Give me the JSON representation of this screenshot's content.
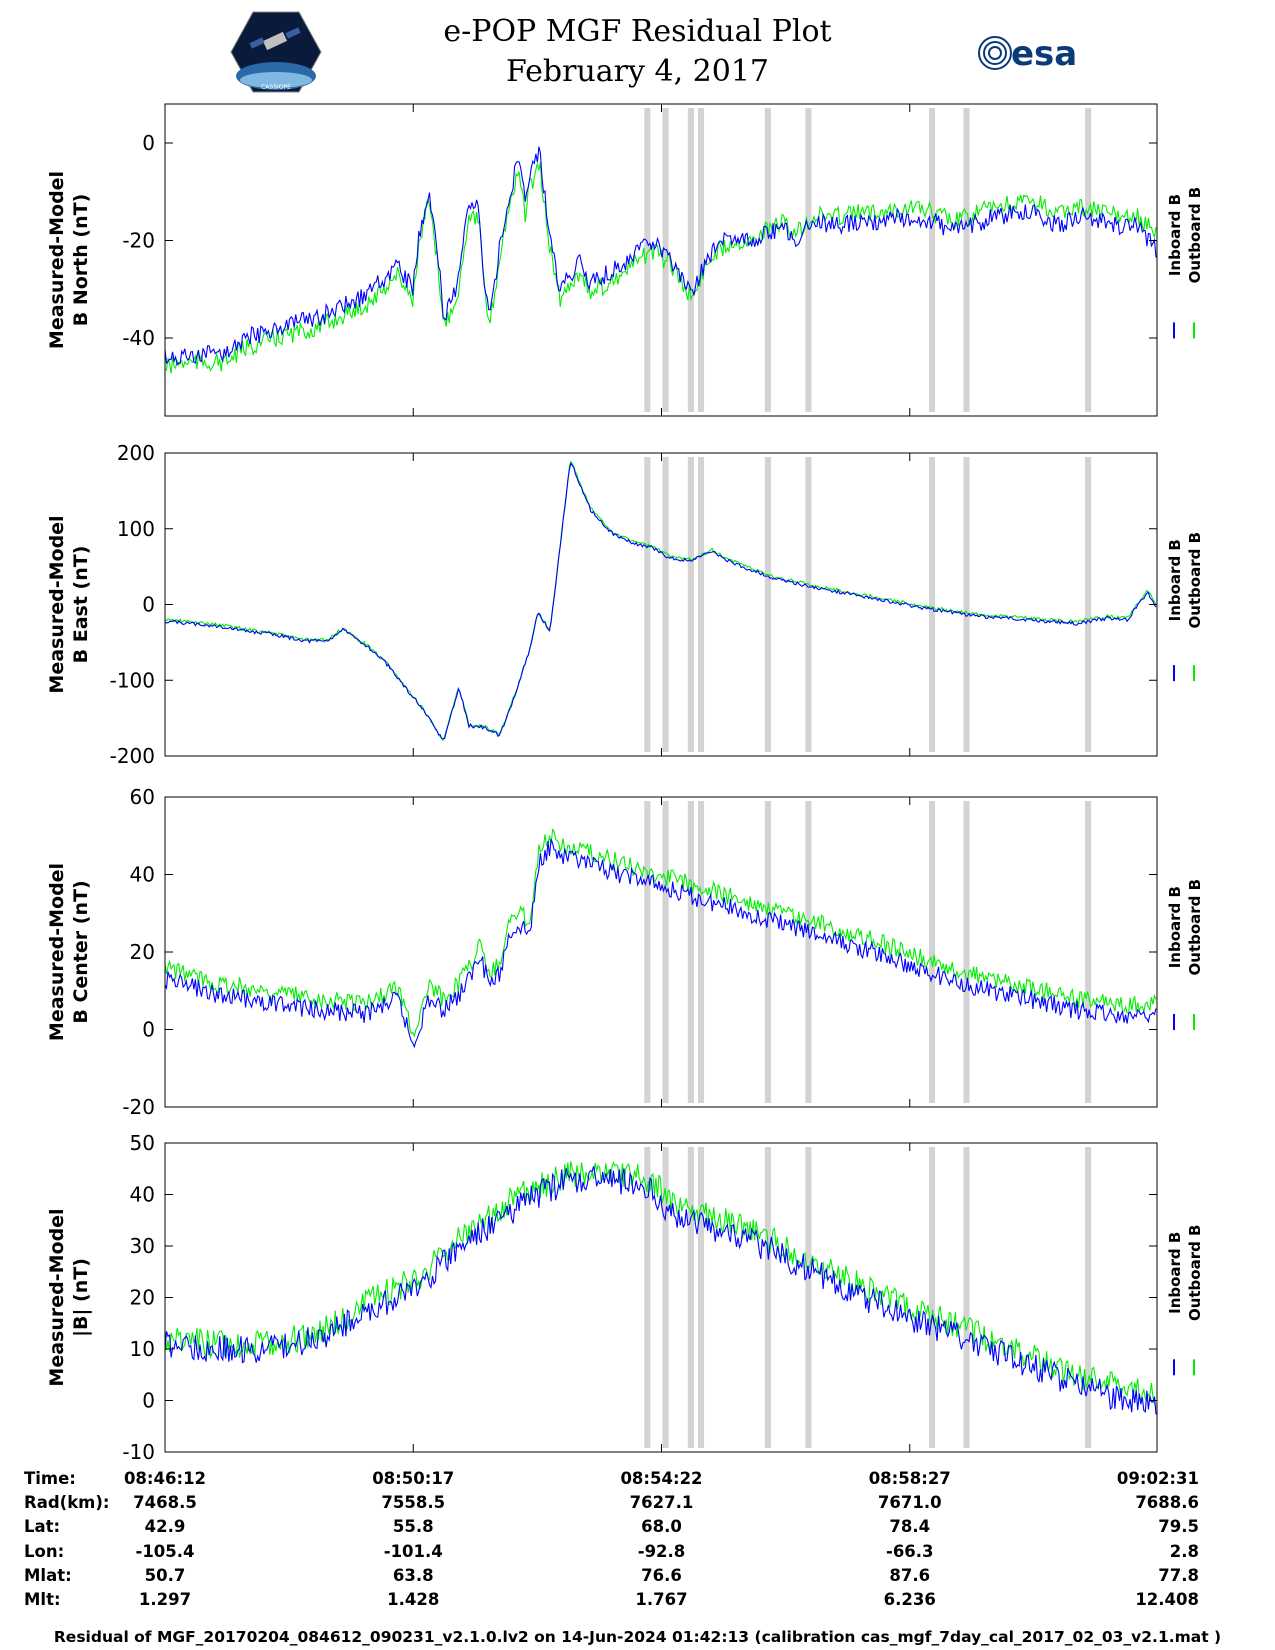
{
  "header": {
    "title_line1": "e-POP MGF Residual Plot",
    "title_line2": "February 4, 2017",
    "left_logo_caption": "CASSIOPE",
    "right_logo_text": "esa"
  },
  "colors": {
    "inboard": "#0000ff",
    "outboard": "#00ee00",
    "gap": "#d3d3d3"
  },
  "legend": {
    "inboard": "Inboard B",
    "outboard": "Outboard B"
  },
  "chart_data": [
    {
      "type": "line",
      "ylabel_line1": "Measured-Model",
      "ylabel_line2": "B North (nT)",
      "ylim": [
        -56,
        8
      ],
      "yticks": [
        0,
        -20,
        -40
      ],
      "xlim_seconds": [
        0,
        979
      ],
      "series": [
        {
          "name": "Inboard B",
          "x": [
            0,
            20,
            60,
            80,
            110,
            150,
            180,
            200,
            210,
            230,
            245,
            250,
            260,
            270,
            275,
            290,
            300,
            310,
            315,
            320,
            330,
            340,
            350,
            355,
            360,
            370,
            380,
            390,
            400,
            410,
            420,
            450,
            480,
            500,
            520,
            530,
            540,
            560,
            580,
            600,
            610,
            620,
            640,
            660,
            700,
            740,
            780,
            820,
            860,
            880,
            900,
            920,
            940,
            960,
            979
          ],
          "y": [
            -44,
            -44,
            -43,
            -40,
            -38,
            -36,
            -33,
            -31,
            -29,
            -25,
            -30,
            -20,
            -10,
            -24,
            -36,
            -28,
            -12,
            -14,
            -28,
            -36,
            -22,
            -10,
            -3,
            -12,
            -6,
            -2,
            -20,
            -30,
            -27,
            -24,
            -29,
            -25,
            -20,
            -24,
            -31,
            -26,
            -22,
            -19,
            -20,
            -18,
            -17,
            -20,
            -16,
            -17,
            -16,
            -15,
            -18,
            -15,
            -14,
            -17,
            -15,
            -16,
            -17,
            -17,
            -22
          ]
        },
        {
          "name": "Outboard B",
          "x": [
            0,
            20,
            60,
            80,
            110,
            150,
            180,
            200,
            210,
            230,
            245,
            250,
            260,
            270,
            275,
            290,
            300,
            310,
            315,
            320,
            330,
            340,
            350,
            355,
            360,
            370,
            380,
            390,
            400,
            410,
            420,
            450,
            480,
            500,
            520,
            530,
            540,
            560,
            580,
            600,
            610,
            620,
            640,
            660,
            700,
            740,
            780,
            820,
            860,
            880,
            900,
            920,
            940,
            960,
            979
          ],
          "y": [
            -46,
            -45,
            -45,
            -42,
            -40,
            -38,
            -35,
            -33,
            -31,
            -27,
            -32,
            -22,
            -12,
            -26,
            -38,
            -30,
            -14,
            -16,
            -30,
            -38,
            -24,
            -12,
            -6,
            -15,
            -9,
            -5,
            -22,
            -32,
            -29,
            -26,
            -31,
            -27,
            -22,
            -25,
            -32,
            -27,
            -23,
            -20,
            -20,
            -17,
            -16,
            -19,
            -15,
            -15,
            -14,
            -13,
            -16,
            -13,
            -12,
            -15,
            -13,
            -14,
            -15,
            -15,
            -19
          ]
        }
      ]
    },
    {
      "type": "line",
      "ylabel_line1": "Measured-Model",
      "ylabel_line2": "B East (nT)",
      "ylim": [
        -200,
        200
      ],
      "yticks": [
        200,
        100,
        0,
        -100,
        -200
      ],
      "xlim_seconds": [
        0,
        979
      ],
      "series": [
        {
          "name": "Inboard B",
          "x": [
            0,
            40,
            60,
            80,
            100,
            120,
            140,
            160,
            175,
            180,
            200,
            220,
            240,
            250,
            260,
            275,
            290,
            300,
            315,
            330,
            340,
            350,
            360,
            368,
            380,
            400,
            420,
            440,
            460,
            480,
            500,
            520,
            540,
            560,
            580,
            600,
            650,
            700,
            750,
            800,
            850,
            900,
            930,
            950,
            960,
            970,
            979
          ],
          "y": [
            -22,
            -27,
            -30,
            -35,
            -38,
            -43,
            -48,
            -48,
            -33,
            -38,
            -55,
            -80,
            -115,
            -130,
            -150,
            -180,
            -110,
            -160,
            -162,
            -173,
            -140,
            -100,
            -60,
            -10,
            -35,
            190,
            125,
            95,
            82,
            75,
            60,
            58,
            70,
            55,
            45,
            35,
            20,
            8,
            -5,
            -15,
            -20,
            -25,
            -18,
            -20,
            0,
            15,
            -5
          ]
        },
        {
          "name": "Outboard B",
          "x": [
            0,
            40,
            60,
            80,
            100,
            120,
            140,
            160,
            175,
            180,
            200,
            220,
            240,
            250,
            260,
            275,
            290,
            300,
            315,
            330,
            340,
            350,
            360,
            368,
            380,
            400,
            420,
            440,
            460,
            480,
            500,
            520,
            540,
            560,
            580,
            600,
            650,
            700,
            750,
            800,
            850,
            900,
            930,
            950,
            960,
            970,
            979
          ],
          "y": [
            -20,
            -25,
            -28,
            -33,
            -36,
            -42,
            -47,
            -47,
            -32,
            -37,
            -54,
            -79,
            -114,
            -129,
            -149,
            -179,
            -109,
            -159,
            -161,
            -172,
            -139,
            -99,
            -59,
            -9,
            -34,
            191,
            127,
            97,
            84,
            77,
            62,
            60,
            72,
            57,
            47,
            37,
            22,
            10,
            -3,
            -13,
            -18,
            -23,
            -16,
            -18,
            2,
            18,
            -2
          ]
        }
      ]
    },
    {
      "type": "line",
      "ylabel_line1": "Measured-Model",
      "ylabel_line2": "B Center (nT)",
      "ylim": [
        -20,
        60
      ],
      "yticks": [
        60,
        40,
        20,
        0,
        -20
      ],
      "xlim_seconds": [
        0,
        979
      ],
      "series": [
        {
          "name": "Inboard B",
          "x": [
            0,
            50,
            100,
            150,
            200,
            230,
            245,
            260,
            275,
            290,
            300,
            310,
            320,
            330,
            340,
            350,
            360,
            370,
            380,
            390,
            400,
            450,
            500,
            550,
            600,
            650,
            700,
            750,
            800,
            850,
            900,
            950,
            979
          ],
          "y": [
            13,
            9,
            7,
            5,
            4,
            8,
            -4,
            8,
            5,
            9,
            13,
            19,
            12,
            14,
            25,
            27,
            25,
            44,
            47,
            45,
            44,
            40,
            36,
            32,
            28,
            24,
            20,
            15,
            11,
            8,
            5,
            3,
            4
          ]
        },
        {
          "name": "Outboard B",
          "x": [
            0,
            50,
            100,
            150,
            200,
            230,
            245,
            260,
            275,
            290,
            300,
            310,
            320,
            330,
            340,
            350,
            360,
            370,
            380,
            390,
            400,
            450,
            500,
            550,
            600,
            650,
            700,
            750,
            800,
            850,
            900,
            950,
            979
          ],
          "y": [
            16,
            12,
            10,
            8,
            7,
            11,
            -1,
            11,
            8,
            12,
            16,
            22,
            15,
            17,
            28,
            30,
            28,
            48,
            50,
            48,
            47,
            43,
            39,
            35,
            31,
            27,
            23,
            18,
            14,
            11,
            8,
            6,
            7
          ]
        }
      ]
    },
    {
      "type": "line",
      "ylabel_line1": "Measured-Model",
      "ylabel_line2": "|B| (nT)",
      "ylim": [
        -10,
        50
      ],
      "yticks": [
        50,
        40,
        30,
        20,
        10,
        0,
        -10
      ],
      "xlim_seconds": [
        0,
        979
      ],
      "series": [
        {
          "name": "Inboard B",
          "x": [
            0,
            50,
            100,
            130,
            160,
            200,
            250,
            300,
            350,
            400,
            440,
            480,
            500,
            550,
            600,
            650,
            700,
            750,
            800,
            850,
            900,
            950,
            979
          ],
          "y": [
            11,
            10,
            10,
            11,
            13,
            17,
            22,
            31,
            38,
            43,
            43,
            41,
            36,
            33,
            29,
            24,
            19,
            15,
            11,
            7,
            3,
            0,
            -1
          ]
        },
        {
          "name": "Outboard B",
          "x": [
            0,
            50,
            100,
            130,
            160,
            200,
            250,
            300,
            350,
            400,
            440,
            480,
            500,
            550,
            600,
            650,
            700,
            750,
            800,
            850,
            900,
            950,
            979
          ],
          "y": [
            12,
            11,
            11,
            12,
            14,
            19,
            24,
            33,
            40,
            44,
            44,
            43,
            38,
            35,
            31,
            26,
            21,
            17,
            13,
            9,
            5,
            2,
            1
          ]
        }
      ]
    }
  ],
  "gap_intervals_seconds": [
    [
      473,
      479
    ],
    [
      491,
      497
    ],
    [
      516,
      522
    ],
    [
      526,
      532
    ],
    [
      592,
      598
    ],
    [
      632,
      638
    ],
    [
      754,
      760
    ],
    [
      788,
      794
    ],
    [
      908,
      914
    ]
  ],
  "x_axis": {
    "tick_seconds": [
      0,
      245,
      490,
      735,
      979
    ],
    "rows": [
      {
        "label": "Time:",
        "values": [
          "08:46:12",
          "08:50:17",
          "08:54:22",
          "08:58:27",
          "09:02:31"
        ]
      },
      {
        "label": "Rad(km):",
        "values": [
          "7468.5",
          "7558.5",
          "7627.1",
          "7671.0",
          "7688.6"
        ]
      },
      {
        "label": "Lat:",
        "values": [
          "42.9",
          "55.8",
          "68.0",
          "78.4",
          "79.5"
        ]
      },
      {
        "label": "Lon:",
        "values": [
          "-105.4",
          "-101.4",
          "-92.8",
          "-66.3",
          "2.8"
        ]
      },
      {
        "label": "Mlat:",
        "values": [
          "50.7",
          "63.8",
          "76.6",
          "87.6",
          "77.8"
        ]
      },
      {
        "label": "Mlt:",
        "values": [
          "1.297",
          "1.428",
          "1.767",
          "6.236",
          "12.408"
        ]
      }
    ]
  },
  "footer": "Residual of MGF_20170204_084612_090231_v2.1.0.lv2 on 14-Jun-2024 01:42:13 (calibration cas_mgf_7day_cal_2017_02_03_v2.1.mat )"
}
